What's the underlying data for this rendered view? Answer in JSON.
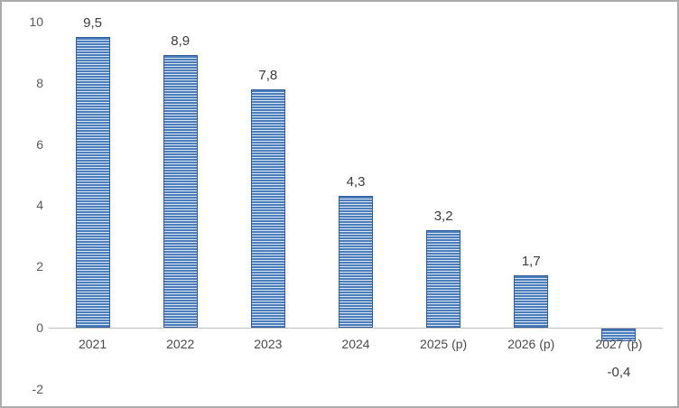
{
  "chart_data": {
    "type": "bar",
    "categories": [
      "2021",
      "2022",
      "2023",
      "2024",
      "2025 (p)",
      "2026 (p)",
      "2027 (p)"
    ],
    "values": [
      9.5,
      8.9,
      7.8,
      4.3,
      3.2,
      1.7,
      -0.4
    ],
    "labels": [
      "9,5",
      "8,9",
      "7,8",
      "4,3",
      "3,2",
      "1,7",
      "-0,4"
    ],
    "title": "",
    "xlabel": "",
    "ylabel": "",
    "ylim": [
      -2,
      10
    ],
    "yticks": [
      10,
      8,
      6,
      4,
      2,
      0,
      -2
    ],
    "grid": false,
    "legend": false,
    "colors": {
      "bar_fill": "#4a7ebb",
      "bar_stripe": "#dce6f2",
      "bar_border": "#2e5b9f",
      "axis_line": "#bfbfbf",
      "tick_text": "#595959",
      "label_text": "#3b3b3b"
    }
  }
}
